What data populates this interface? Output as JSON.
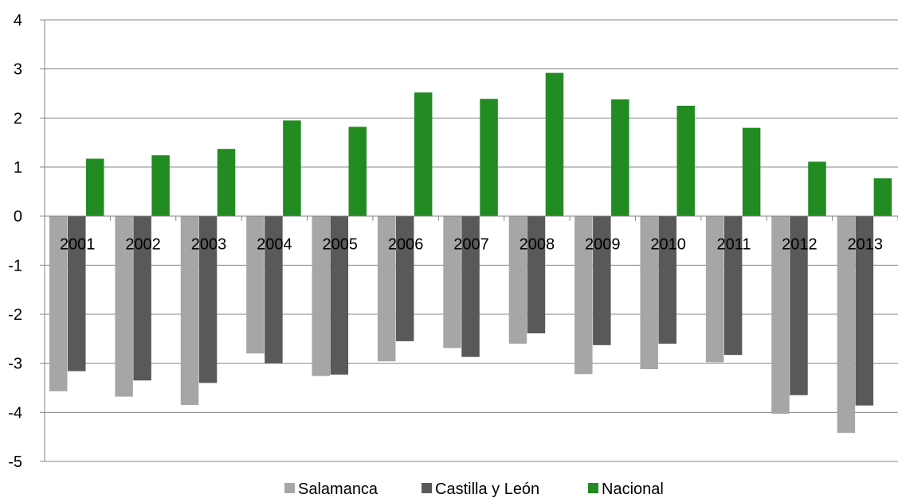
{
  "chart_data": {
    "type": "bar",
    "title": "",
    "xlabel": "",
    "ylabel": "",
    "ylim": [
      -5,
      4
    ],
    "y_ticks": [
      "4",
      "3",
      "2",
      "1",
      "0",
      "-1",
      "-2",
      "-3",
      "-4",
      "-5"
    ],
    "grid": "horizontal",
    "legend_placement": "bottom",
    "categories": [
      "2001",
      "2002",
      "2003",
      "2004",
      "2005",
      "2006",
      "2007",
      "2008",
      "2009",
      "2010",
      "2011",
      "2012",
      "2013"
    ],
    "series": [
      {
        "name": "Salamanca",
        "color": "#a6a6a6",
        "values": [
          -3.57,
          -3.68,
          -3.85,
          -2.8,
          -3.26,
          -2.96,
          -2.69,
          -2.6,
          -3.22,
          -3.12,
          -2.98,
          -4.03,
          -4.42
        ]
      },
      {
        "name": "Castilla y León",
        "color": "#595959",
        "values": [
          -3.16,
          -3.35,
          -3.4,
          -3.0,
          -3.23,
          -2.55,
          -2.87,
          -2.39,
          -2.63,
          -2.6,
          -2.83,
          -3.65,
          -3.86
        ]
      },
      {
        "name": "Nacional",
        "color": "#228b22",
        "values": [
          1.17,
          1.24,
          1.37,
          1.95,
          1.82,
          2.52,
          2.39,
          2.92,
          2.38,
          2.25,
          1.8,
          1.11,
          0.77
        ]
      }
    ]
  }
}
